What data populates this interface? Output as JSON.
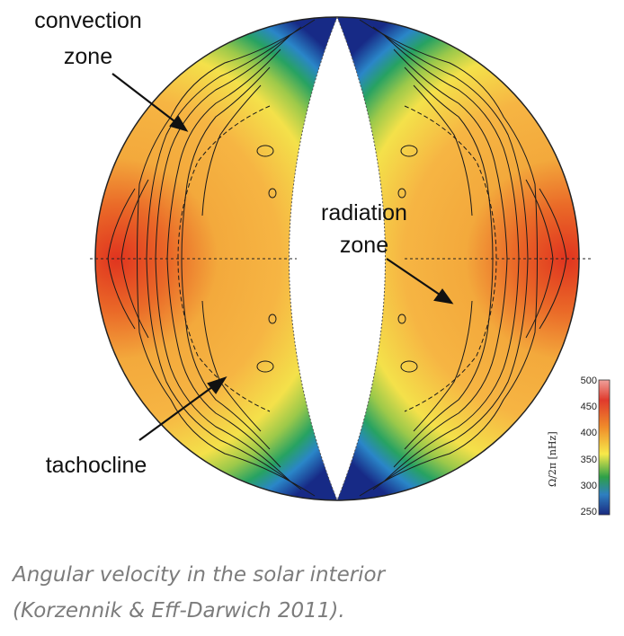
{
  "labels": {
    "convection_line1": "convection",
    "convection_line2": "zone",
    "radiation_line1": "radiation",
    "radiation_line2": "zone",
    "tachocline": "tachocline"
  },
  "colorbar": {
    "title": "Ω/2π [nHz]",
    "ticks": [
      "500",
      "450",
      "400",
      "350",
      "300",
      "250"
    ],
    "colors": [
      "#efa09a",
      "#e03a2c",
      "#f08c2a",
      "#f7e94a",
      "#2ea048",
      "#2e7fc0",
      "#1a2a80"
    ]
  },
  "caption": {
    "line1": "Angular velocity in the solar interior",
    "line2": "(Korzennik & Eff-Darwich 2011)."
  }
}
